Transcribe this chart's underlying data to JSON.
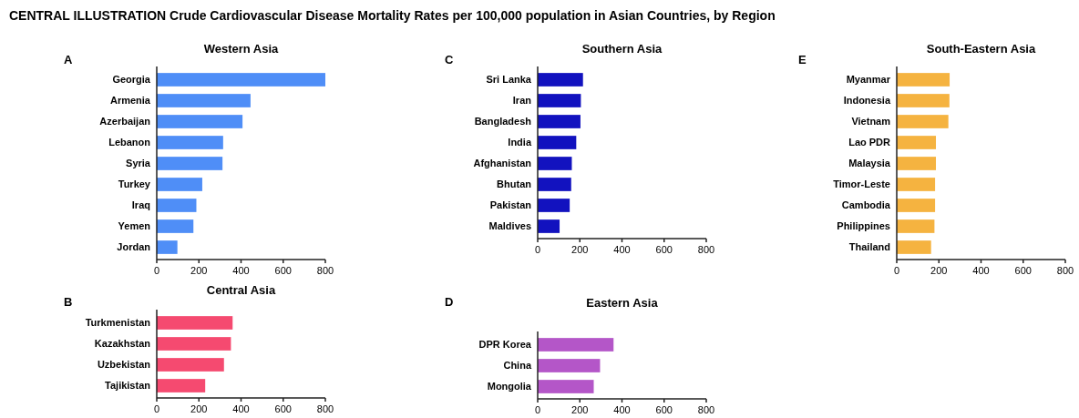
{
  "chart_data": [
    {
      "type": "bar",
      "orientation": "horizontal",
      "title": "Western Asia",
      "annotations": [
        "CENTRAL ILLUSTRATION Crude Cardiovascular Disease Mortality Rates per 100,000 population in Asian Countries, by Region",
        "A"
      ],
      "categories": [
        "Georgia",
        "Armenia",
        "Azerbaijan",
        "Lebanon",
        "Syria",
        "Turkey",
        "Iraq",
        "Yemen",
        "Jordan"
      ],
      "values": [
        800,
        445,
        407,
        315,
        312,
        216,
        188,
        174,
        98
      ],
      "color": "#4f8ef7",
      "xlim": [
        0,
        800
      ],
      "xticks": [
        0,
        200,
        400,
        600,
        800
      ]
    },
    {
      "type": "bar",
      "orientation": "horizontal",
      "title": "Southern Asia",
      "annotations": [
        "C"
      ],
      "categories": [
        "Sri Lanka",
        "Iran",
        "Bangladesh",
        "India",
        "Afghanistan",
        "Bhutan",
        "Pakistan",
        "Maldives"
      ],
      "values": [
        215,
        205,
        203,
        183,
        162,
        159,
        152,
        104
      ],
      "color": "#1212bf",
      "xlim": [
        0,
        800
      ],
      "xticks": [
        0,
        200,
        400,
        600,
        800
      ]
    },
    {
      "type": "bar",
      "orientation": "horizontal",
      "title": "South-Eastern Asia",
      "annotations": [
        "E"
      ],
      "categories": [
        "Myanmar",
        "Indonesia",
        "Vietnam",
        "Lao PDR",
        "Malaysia",
        "Timor-Leste",
        "Cambodia",
        "Philippines",
        "Thailand"
      ],
      "values": [
        251,
        250,
        245,
        186,
        186,
        182,
        182,
        179,
        163
      ],
      "color": "#f5b340",
      "xlim": [
        0,
        800
      ],
      "xticks": [
        0,
        200,
        400,
        600,
        800
      ]
    },
    {
      "type": "bar",
      "orientation": "horizontal",
      "title": "Central Asia",
      "annotations": [
        "B"
      ],
      "categories": [
        "Turkmenistan",
        "Kazakhstan",
        "Uzbekistan",
        "Tajikistan"
      ],
      "values": [
        360,
        352,
        319,
        230
      ],
      "color": "#f54a70",
      "xlim": [
        0,
        800
      ],
      "xticks": [
        0,
        200,
        400,
        600,
        800
      ]
    },
    {
      "type": "bar",
      "orientation": "horizontal",
      "title": "Eastern Asia",
      "annotations": [
        "D"
      ],
      "categories": [
        "DPR Korea",
        "China",
        "Mongolia"
      ],
      "values": [
        360,
        296,
        266
      ],
      "color": "#b456c8",
      "xlim": [
        0,
        800
      ],
      "xticks": [
        0,
        200,
        400,
        600,
        800
      ]
    }
  ]
}
